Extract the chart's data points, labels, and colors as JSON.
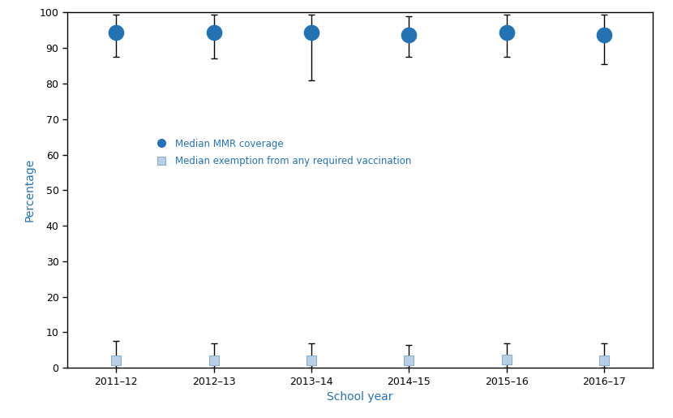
{
  "school_years": [
    "2011–12",
    "2012–13",
    "2013–14",
    "2014–15",
    "2015–16",
    "2016–17"
  ],
  "x_positions": [
    0,
    1,
    2,
    3,
    4,
    5
  ],
  "mmr_median": [
    94.5,
    94.3,
    94.5,
    93.8,
    94.4,
    93.8
  ],
  "mmr_upper": [
    99.5,
    99.5,
    99.5,
    99.0,
    99.5,
    99.5
  ],
  "mmr_lower": [
    87.5,
    87.0,
    81.0,
    87.5,
    87.5,
    85.5
  ],
  "exempt_median": [
    2.0,
    2.2,
    2.1,
    2.2,
    2.3,
    2.2
  ],
  "exempt_upper": [
    7.5,
    7.0,
    7.0,
    6.5,
    7.0,
    7.0
  ],
  "exempt_lower": [
    0.1,
    0.1,
    0.1,
    0.1,
    0.1,
    0.1
  ],
  "mmr_color": "#2272b4",
  "exempt_color": "#b8cfe8",
  "exempt_edge_color": "#8aafc8",
  "error_bar_color": "#000000",
  "ylabel": "Percentage",
  "xlabel": "School year",
  "label_color": "#2272b4",
  "ylim": [
    0,
    100
  ],
  "yticks": [
    0,
    10,
    20,
    30,
    40,
    50,
    60,
    70,
    80,
    90,
    100
  ],
  "legend_mmr": "Median MMR coverage",
  "legend_exempt": "Median exemption from any required vaccination",
  "bg_color": "#ffffff",
  "capsize": 3,
  "lw": 1.0
}
